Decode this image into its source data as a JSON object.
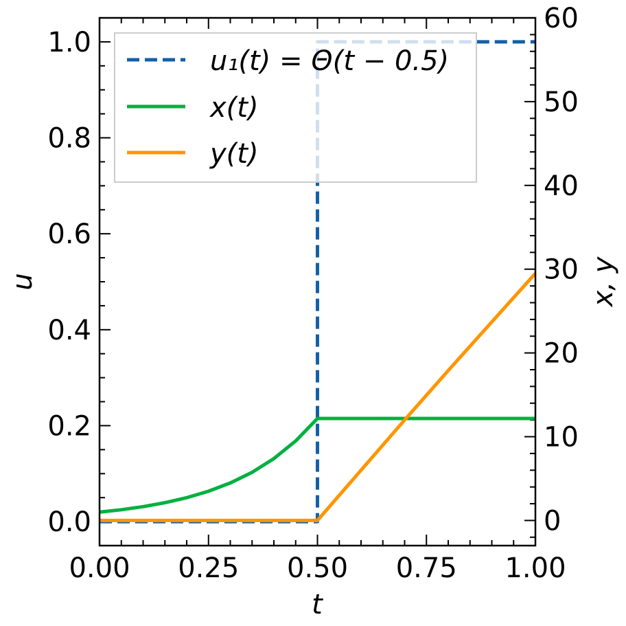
{
  "chart_data": {
    "type": "line",
    "xlabel": "t",
    "ylabel_left": "u",
    "ylabel_right": "x, y",
    "xlim": [
      0.0,
      1.0
    ],
    "ylim_left": [
      -0.05,
      1.05
    ],
    "ylim_right": [
      -3.0,
      60.0
    ],
    "xticks": [
      0.0,
      0.25,
      0.5,
      0.75,
      1.0
    ],
    "xtick_labels": [
      "0.00",
      "0.25",
      "0.50",
      "0.75",
      "1.00"
    ],
    "yticks_left": [
      0.0,
      0.2,
      0.4,
      0.6,
      0.8,
      1.0
    ],
    "ytick_labels_left": [
      "0.0",
      "0.2",
      "0.4",
      "0.6",
      "0.8",
      "1.0"
    ],
    "yticks_right": [
      0,
      10,
      20,
      30,
      40,
      50,
      60
    ],
    "ytick_labels_right": [
      "0",
      "10",
      "20",
      "30",
      "40",
      "50",
      "60"
    ],
    "grid": false,
    "legend_position": "upper-center",
    "series": [
      {
        "name": "u₁(t) = Θ(t − 0.5)",
        "axis": "left",
        "style": "dashed",
        "color": "#1460a8",
        "x": [
          0.0,
          0.5,
          0.5,
          1.0
        ],
        "y": [
          0.0,
          0.0,
          1.0,
          1.0
        ]
      },
      {
        "name": "x(t)",
        "axis": "right",
        "style": "solid",
        "color": "#00b140",
        "x": [
          0.0,
          0.05,
          0.1,
          0.15,
          0.2,
          0.25,
          0.3,
          0.35,
          0.4,
          0.45,
          0.5,
          0.55,
          0.6,
          0.7,
          0.8,
          0.9,
          1.0
        ],
        "y": [
          1.0,
          1.28,
          1.65,
          2.12,
          2.72,
          3.49,
          4.48,
          5.75,
          7.39,
          9.49,
          12.18,
          12.18,
          12.18,
          12.18,
          12.18,
          12.18,
          12.18
        ]
      },
      {
        "name": "y(t)",
        "axis": "right",
        "style": "solid",
        "color": "#ff9500",
        "x": [
          0.0,
          0.5,
          0.6,
          0.7,
          0.8,
          0.9,
          1.0
        ],
        "y": [
          0.0,
          0.0,
          6.0,
          12.0,
          17.9,
          23.7,
          29.5
        ]
      }
    ]
  }
}
